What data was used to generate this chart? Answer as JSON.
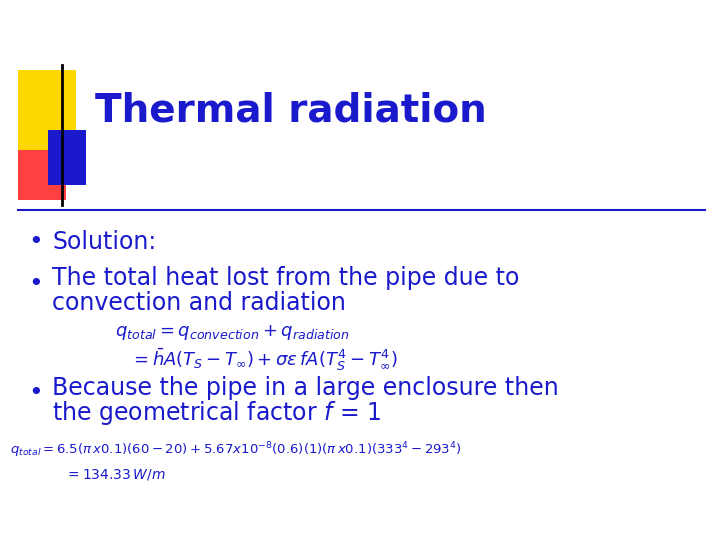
{
  "title": "Thermal radiation",
  "title_color": "#1a1acc",
  "bg_color": "#ffffff",
  "text_color": "#1a1acc",
  "bullet_color": "#1a1acc",
  "bullet1": "Solution:",
  "bullet2_line1": "The total heat lost from the pipe due to",
  "bullet2_line2": "convection and radiation",
  "eq1": "$q_{total} = q_{convection} + q_{radiation}$",
  "eq2": "$= \\bar{h}A(T_S - T_{\\infty}) + \\sigma\\varepsilon\\, fA(T_S^4 - T_{\\infty}^4)$",
  "bullet3_line1": "Because the pipe in a large enclosure then",
  "bullet3_line2": "the geometrical factor $\\mathit{f}$ = 1",
  "eq3": "$q_{total} = 6.5(\\pi\\, x0.1)(60-20)+5.67x10^{-8}(0.6)(1)(\\pi\\, x0.1)(333^4-293^4)$",
  "eq4": "$= 134.33\\, W/m$",
  "logo_yellow": "#FFD700",
  "logo_red": "#FF4040",
  "logo_blue": "#1a1acc",
  "divider_color": "#1a1acc"
}
